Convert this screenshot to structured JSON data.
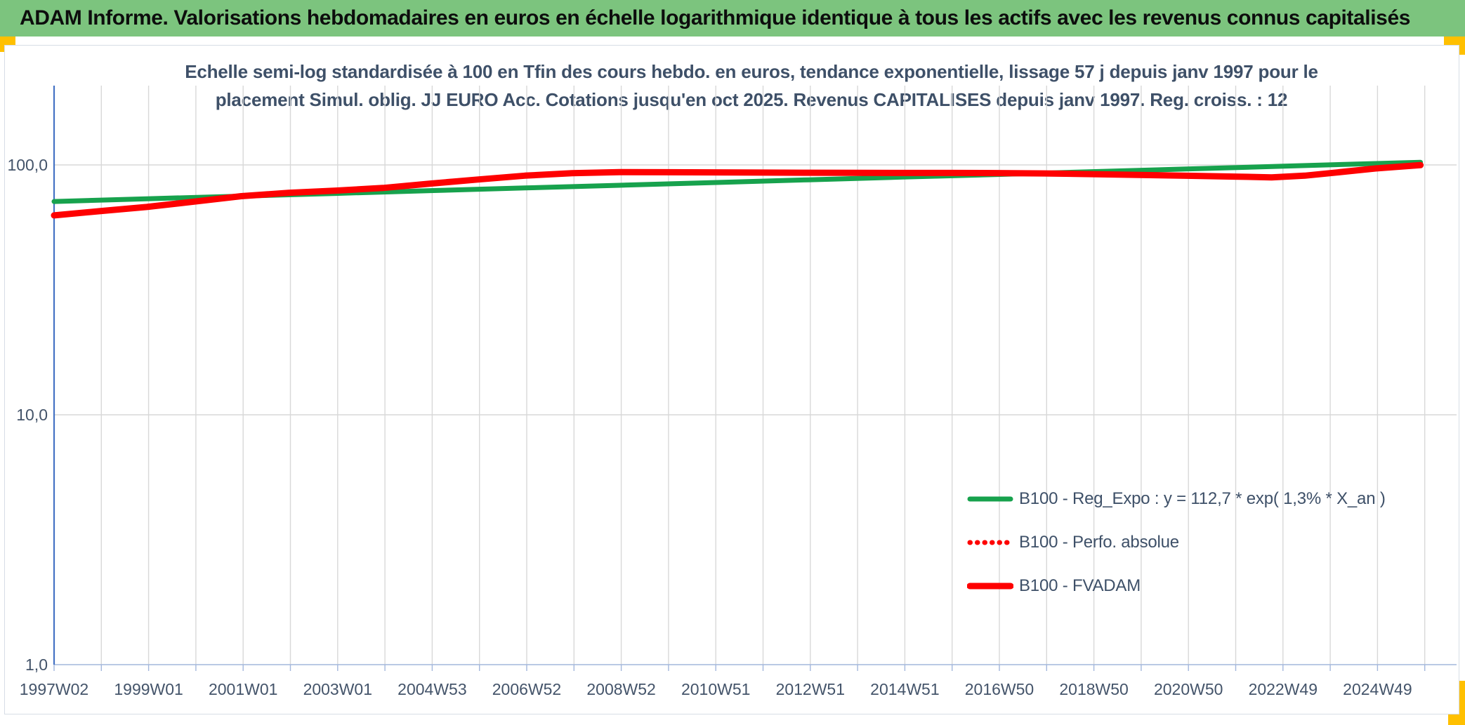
{
  "header": {
    "title": "ADAM Informe. Valorisations hebdomadaires en euros en échelle logarithmique identique à tous les actifs avec les revenus connus capitalisés"
  },
  "chart_title": {
    "line1": "Echelle semi-log standardisée à 100 en Tfin des cours hebdo. en euros, tendance exponentielle, lissage 57 j depuis janv 1997 pour le",
    "line2": "placement Simul. oblig. JJ EURO Acc. Cotations jusqu'en oct 2025. Revenus CAPITALISES depuis janv 1997. Reg. croiss. : 12"
  },
  "colors": {
    "header_bg": "#7cc47e",
    "accent_yellow": "#ffc000",
    "green_line": "#17a24d",
    "red_line": "#fe0000",
    "y_axis_blue": "#4472c4",
    "x_axis_line": "#a3b7dc",
    "grid": "#d8d8d8",
    "text": "#44546a"
  },
  "chart_data": {
    "type": "line",
    "title": "Echelle semi-log standardisée à 100 en Tfin des cours hebdo. en euros, tendance exponentielle, lissage 57 j depuis janv 1997 pour le placement Simul. oblig. JJ EURO Acc. Cotations jusqu'en oct 2025. Revenus CAPITALISES depuis janv 1997. Reg. croiss. : 12",
    "y_axis": {
      "scale": "log10",
      "tick_labels": [
        "100,0",
        "10,0",
        "1,0"
      ],
      "tick_values": [
        100,
        10,
        1
      ],
      "range": [
        1,
        208
      ],
      "grid": true
    },
    "x_axis": {
      "unit": "ISO week",
      "ticks": [
        "1997W02",
        "1999W01",
        "2001W01",
        "2003W01",
        "2004W53",
        "2006W52",
        "2008W52",
        "2010W51",
        "2012W51",
        "2014W51",
        "2016W50",
        "2018W50",
        "2020W50",
        "2022W49",
        "2024W49"
      ],
      "tick_interval_years": 2,
      "start_year": 1997.04,
      "end_year": 2025.95,
      "grid": "yearly"
    },
    "legend_position": "inside-right-lower",
    "series": [
      {
        "name": "B100 - Reg_Expo : y = 112,7 * exp( 1,3% * X_an )",
        "color": "#17a24d",
        "style": "solid",
        "x": [
          1997.04,
          1999,
          2001,
          2003,
          2005,
          2007,
          2009,
          2011,
          2013,
          2015,
          2017,
          2019,
          2021,
          2023,
          2025,
          2025.95
        ],
        "values": [
          71.4,
          73.2,
          75.0,
          76.9,
          78.9,
          80.9,
          82.9,
          85.0,
          87.2,
          89.4,
          91.6,
          94.0,
          96.3,
          98.8,
          101.3,
          102.4
        ]
      },
      {
        "name": "B100 - Perfo. absolue",
        "color": "#fe0000",
        "style": "dotted",
        "note": "coincides with B100 - FVADAM, hidden beneath the solid red line",
        "x": [
          1997.04,
          1998,
          1999,
          2000,
          2001,
          2002,
          2003,
          2004,
          2005,
          2006,
          2007,
          2008,
          2009,
          2010,
          2011,
          2012,
          2013,
          2014,
          2015,
          2016,
          2017,
          2018,
          2019,
          2020,
          2021,
          2022,
          2022.8,
          2023.5,
          2024.3,
          2025,
          2025.95
        ],
        "values": [
          62.8,
          65.3,
          67.9,
          71.3,
          75.0,
          77.3,
          78.9,
          80.9,
          84.2,
          87.4,
          90.6,
          92.7,
          93.6,
          93.5,
          93.4,
          93.2,
          93.1,
          93.0,
          92.9,
          92.9,
          92.8,
          92.5,
          91.9,
          91.2,
          90.5,
          89.8,
          89.2,
          90.6,
          93.8,
          96.8,
          99.8
        ]
      },
      {
        "name": "B100 - FVADAM",
        "color": "#fe0000",
        "style": "solid",
        "x": [
          1997.04,
          1998,
          1999,
          2000,
          2001,
          2002,
          2003,
          2004,
          2005,
          2006,
          2007,
          2008,
          2009,
          2010,
          2011,
          2012,
          2013,
          2014,
          2015,
          2016,
          2017,
          2018,
          2019,
          2020,
          2021,
          2022,
          2022.8,
          2023.5,
          2024.3,
          2025,
          2025.95
        ],
        "values": [
          62.8,
          65.3,
          67.9,
          71.3,
          75.0,
          77.3,
          78.9,
          80.9,
          84.2,
          87.4,
          90.6,
          92.7,
          93.6,
          93.5,
          93.4,
          93.2,
          93.1,
          93.0,
          92.9,
          92.9,
          92.8,
          92.5,
          91.9,
          91.2,
          90.5,
          89.8,
          89.2,
          90.6,
          93.8,
          96.8,
          99.8
        ]
      }
    ]
  }
}
